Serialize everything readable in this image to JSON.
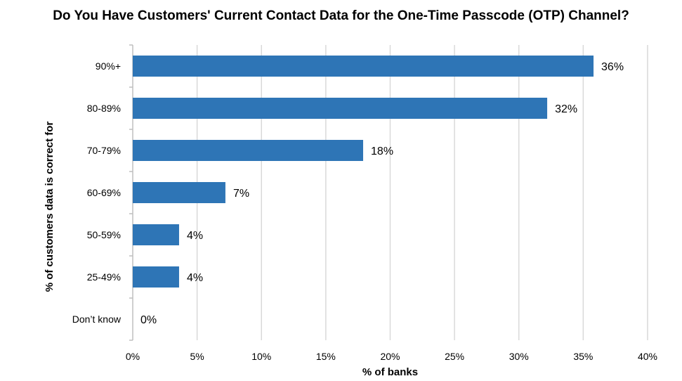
{
  "chart_data": {
    "type": "bar",
    "orientation": "horizontal",
    "title": "Do You Have Customers' Current Contact Data for the One-Time Passcode (OTP) Channel?",
    "xlabel": "% of banks",
    "ylabel": "% of customers data is correct for",
    "categories": [
      "90%+",
      "80-89%",
      "70-79%",
      "60-69%",
      "50-59%",
      "25-49%",
      "Don’t know"
    ],
    "values": [
      36,
      32,
      18,
      7,
      4,
      4,
      0
    ],
    "plotted_values": [
      35.8,
      32.2,
      17.9,
      7.2,
      3.6,
      3.6,
      0
    ],
    "data_labels": [
      "36%",
      "32%",
      "18%",
      "7%",
      "4%",
      "4%",
      "0%"
    ],
    "xlim": [
      0,
      40
    ],
    "xticks": [
      0,
      5,
      10,
      15,
      20,
      25,
      30,
      35,
      40
    ],
    "xtick_labels": [
      "0%",
      "5%",
      "10%",
      "15%",
      "20%",
      "25%",
      "30%",
      "35%",
      "40%"
    ],
    "grid": "vertical",
    "legend": "none",
    "bar_color": "#2E75B6",
    "grid_color": "#D9D9D9",
    "axis_color": "#BFBFBF"
  }
}
